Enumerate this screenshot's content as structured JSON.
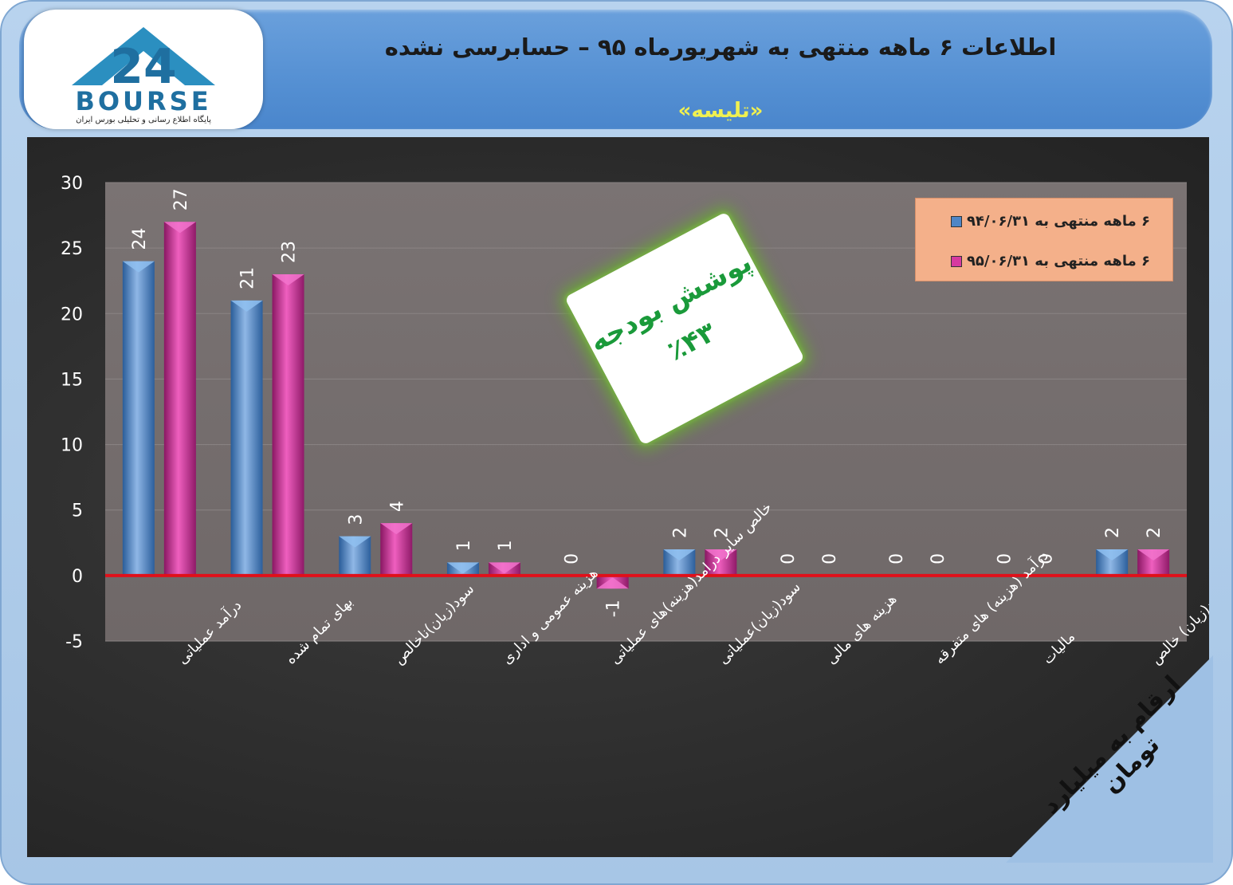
{
  "header": {
    "title": "اطلاعات ۶ ماهه منتهی به شهریورماه ۹۵ – حسابرسی نشده",
    "subtitle": "«تلیسه»"
  },
  "logo": {
    "word": "BOURSE",
    "caption": "پایگاه اطلاع رسانی و تحلیلی بورس ایران"
  },
  "budget_box": {
    "title": "پوشش بودجه",
    "value": "٪۴۳"
  },
  "units_note": "ارقام به میلیارد تومان",
  "colors": {
    "series1": "#4f86c6",
    "series2": "#d63aa0",
    "zero_line": "#e0101a"
  },
  "chart_data": {
    "type": "bar",
    "categories": [
      "درآمد عملیاتی",
      "بهای تمام شده",
      "سود(زیان)ناخالص",
      "هزینه عمومی و اداری",
      "خالص سایر درامد(هزینه)های عملیاتی",
      "سود(زیان)عملیاتی",
      "هزینه های مالی",
      "درآمد (هزینه) های متفرقه",
      "مالیات",
      "سود(زیان) خالص"
    ],
    "series": [
      {
        "name": "۶ ماهه منتهی به ۹۴/۰۶/۳۱",
        "values": [
          24,
          21,
          3,
          1,
          0,
          2,
          0,
          0,
          0,
          2
        ],
        "labels": [
          "24",
          "21",
          "3",
          "1",
          "0",
          "2",
          "0",
          "0",
          "0",
          "2"
        ]
      },
      {
        "name": "۶ ماهه منتهی به ۹۵/۰۶/۳۱",
        "values": [
          27,
          23,
          4,
          1,
          -1,
          2,
          0,
          0,
          0,
          2
        ],
        "labels": [
          "27",
          "23",
          "4",
          "1",
          "-1",
          "2",
          "0",
          "0",
          "0",
          "2"
        ]
      }
    ],
    "y_ticks": [
      "30",
      "25",
      "20",
      "15",
      "10",
      "5",
      "0",
      "-5"
    ],
    "ylim": [
      -5,
      30
    ],
    "legend_position": "top-right"
  }
}
